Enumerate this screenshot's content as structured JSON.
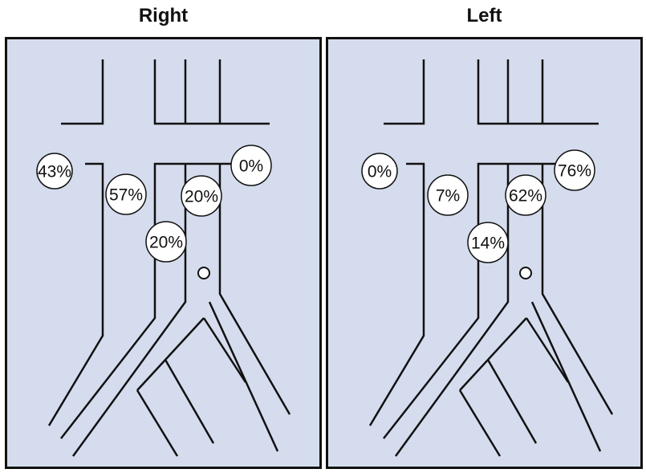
{
  "panels": [
    {
      "title": "Right",
      "labels": {
        "a": "43%",
        "b": "57%",
        "c": "20%",
        "d": "20%",
        "e": "0%"
      }
    },
    {
      "title": "Left",
      "labels": {
        "a": "0%",
        "b": "7%",
        "c": "14%",
        "d": "62%",
        "e": "76%"
      }
    }
  ]
}
